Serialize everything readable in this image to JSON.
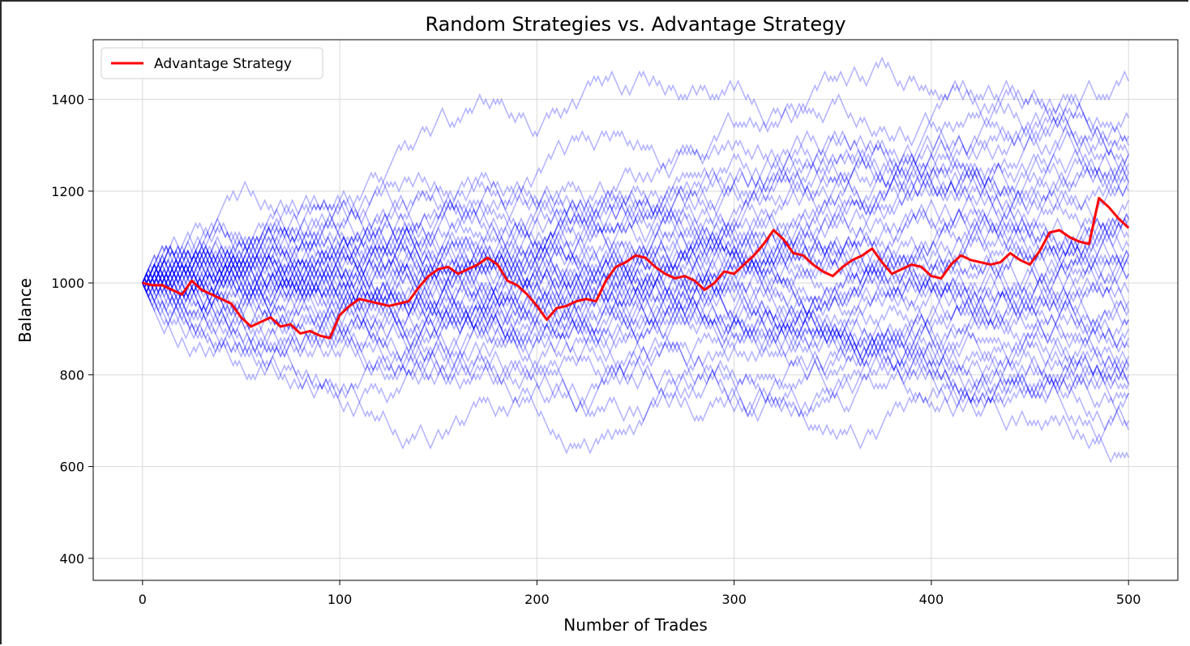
{
  "chart_data": {
    "type": "line",
    "title": "Random Strategies vs. Advantage Strategy",
    "xlabel": "Number of Trades",
    "ylabel": "Balance",
    "xlim": [
      -25,
      525
    ],
    "ylim": [
      352,
      1530
    ],
    "xticks": [
      0,
      100,
      200,
      300,
      400,
      500
    ],
    "yticks": [
      400,
      600,
      800,
      1000,
      1200,
      1400
    ],
    "grid": true,
    "legend": {
      "position": "top-left",
      "entries": [
        "Advantage Strategy"
      ]
    },
    "colors": {
      "random": "#0000ff",
      "advantage": "#ff0000"
    },
    "random_series": {
      "count": 50,
      "steps": 500,
      "start": 1000,
      "step_size": 10,
      "line_alpha": 0.3
    },
    "series": [
      {
        "name": "Advantage Strategy",
        "color": "#ff0000",
        "x": [
          0,
          5,
          10,
          15,
          20,
          25,
          30,
          35,
          40,
          45,
          50,
          55,
          60,
          65,
          70,
          75,
          80,
          85,
          90,
          95,
          100,
          105,
          110,
          115,
          120,
          125,
          130,
          135,
          140,
          145,
          150,
          155,
          160,
          165,
          170,
          175,
          180,
          185,
          190,
          195,
          200,
          205,
          210,
          215,
          220,
          225,
          230,
          235,
          240,
          245,
          250,
          255,
          260,
          265,
          270,
          275,
          280,
          285,
          290,
          295,
          300,
          305,
          310,
          315,
          320,
          325,
          330,
          335,
          340,
          345,
          350,
          355,
          360,
          365,
          370,
          375,
          380,
          385,
          390,
          395,
          400,
          405,
          410,
          415,
          420,
          425,
          430,
          435,
          440,
          445,
          450,
          455,
          460,
          465,
          470,
          475,
          480,
          485,
          490,
          495,
          500
        ],
        "y": [
          1000,
          995,
          995,
          985,
          975,
          1005,
          985,
          975,
          965,
          955,
          925,
          905,
          915,
          925,
          905,
          910,
          890,
          895,
          885,
          880,
          930,
          950,
          965,
          960,
          955,
          950,
          955,
          960,
          990,
          1015,
          1030,
          1035,
          1020,
          1030,
          1040,
          1055,
          1040,
          1005,
          995,
          975,
          950,
          920,
          945,
          950,
          960,
          965,
          960,
          1005,
          1035,
          1045,
          1060,
          1055,
          1035,
          1020,
          1010,
          1015,
          1005,
          985,
          1000,
          1025,
          1020,
          1040,
          1060,
          1085,
          1115,
          1095,
          1065,
          1060,
          1040,
          1025,
          1015,
          1035,
          1050,
          1060,
          1075,
          1045,
          1020,
          1030,
          1040,
          1035,
          1015,
          1010,
          1040,
          1060,
          1050,
          1045,
          1040,
          1045,
          1065,
          1050,
          1040,
          1070,
          1110,
          1115,
          1100,
          1090,
          1085,
          1185,
          1165,
          1140,
          1120
        ]
      }
    ]
  }
}
